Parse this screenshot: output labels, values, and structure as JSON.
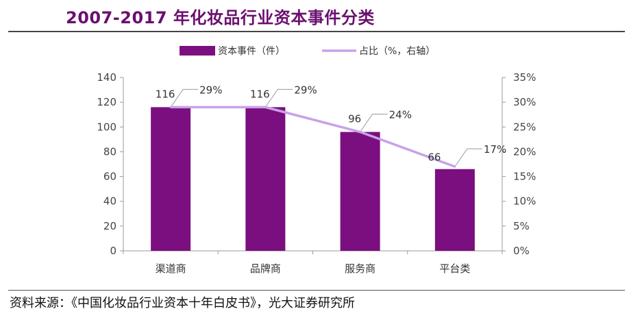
{
  "title": "2007-2017 年化妆品行业资本事件分类",
  "source": "资料来源：《中国化妆品行业资本十年白皮书》，光大证券研究所",
  "watermark": "",
  "colors": {
    "bar": "#7b0f7f",
    "line": "#c8a2e8",
    "title": "#6a0f6f"
  },
  "chart_data": {
    "type": "bar",
    "categories": [
      "渠道商",
      "品牌商",
      "服务商",
      "平台类"
    ],
    "series": [
      {
        "name": "资本事件（件）",
        "type": "bar",
        "axis": "left",
        "values": [
          116,
          116,
          96,
          66
        ]
      },
      {
        "name": "占比（%，右轴）",
        "type": "line",
        "axis": "right",
        "values": [
          29,
          29,
          24,
          17
        ]
      }
    ],
    "ylim": [
      0,
      140
    ],
    "yticks": [
      0,
      20,
      40,
      60,
      80,
      100,
      120,
      140
    ],
    "y2lim": [
      0,
      35
    ],
    "y2ticks": [
      "0%",
      "5%",
      "10%",
      "15%",
      "20%",
      "25%",
      "30%",
      "35%"
    ],
    "bar_labels": [
      "116",
      "116",
      "96",
      "66"
    ],
    "line_labels": [
      "29%",
      "29%",
      "24%",
      "17%"
    ],
    "legend_position": "top",
    "grid": false
  }
}
